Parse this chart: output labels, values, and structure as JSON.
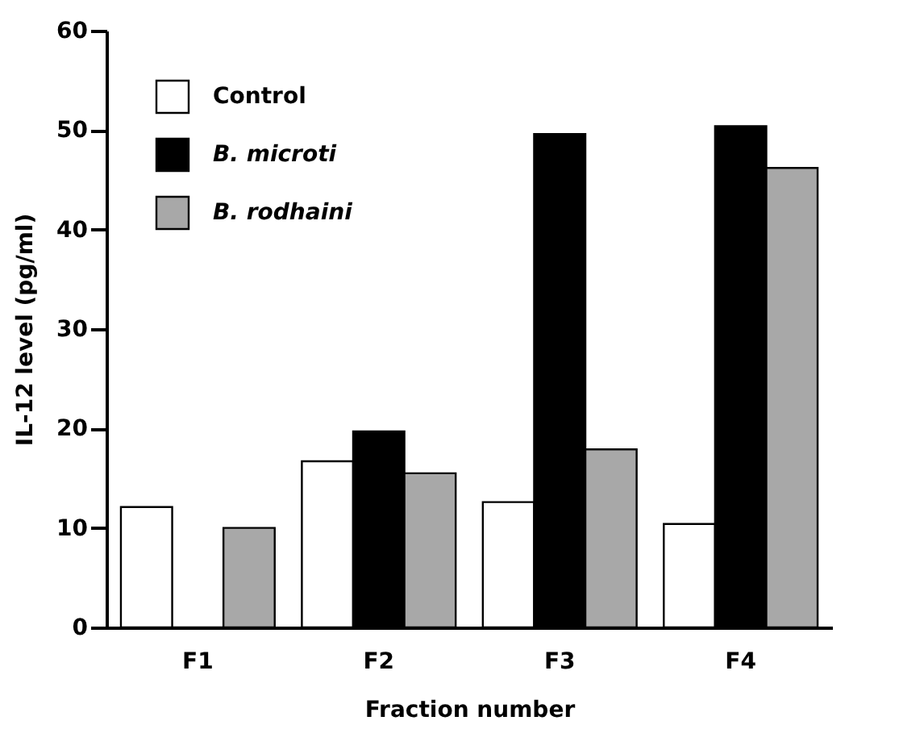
{
  "chart_data": {
    "type": "bar",
    "xlabel": "Fraction number",
    "ylabel": "IL-12 level (pg/ml)",
    "categories": [
      "F1",
      "F2",
      "F3",
      "F4"
    ],
    "series": [
      {
        "name": "Control",
        "color": "#ffffff",
        "values": [
          12.1,
          16.7,
          12.6,
          10.4
        ]
      },
      {
        "name": "B. microti",
        "color": "#000000",
        "values": [
          0,
          19.7,
          49.6,
          50.4
        ]
      },
      {
        "name": "B. rodhaini",
        "color": "#a8a8a8",
        "values": [
          10,
          15.5,
          17.9,
          46.2
        ]
      }
    ],
    "ylim": [
      0,
      60
    ],
    "yticks": [
      0,
      10,
      20,
      30,
      40,
      50,
      60
    ],
    "grid": false,
    "legend": "top left"
  }
}
